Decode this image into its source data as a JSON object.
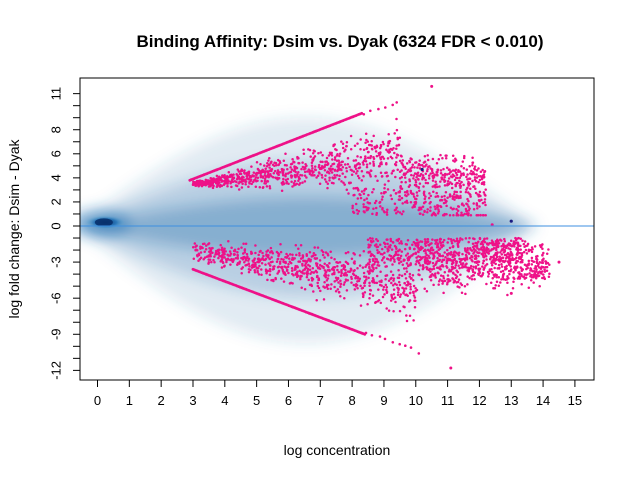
{
  "chart_data": {
    "type": "scatter",
    "title": "Binding Affinity: Dsim vs. Dyak (6324 FDR < 0.010)",
    "xlabel": "log concentration",
    "ylabel": "log fold change: Dsim - Dyak",
    "xlim": [
      -0.55,
      15.6
    ],
    "ylim": [
      -12.8,
      12.3
    ],
    "x_ticks": [
      0,
      1,
      2,
      3,
      4,
      5,
      6,
      7,
      8,
      9,
      10,
      11,
      12,
      13,
      14,
      15
    ],
    "y_ticks": [
      {
        "value": 11,
        "label": "11"
      },
      {
        "value": 10,
        "label": ""
      },
      {
        "value": 9,
        "label": ""
      },
      {
        "value": 8,
        "label": "8"
      },
      {
        "value": 7,
        "label": ""
      },
      {
        "value": 6,
        "label": "6"
      },
      {
        "value": 5,
        "label": ""
      },
      {
        "value": 4,
        "label": "4"
      },
      {
        "value": 3,
        "label": ""
      },
      {
        "value": 2,
        "label": "2"
      },
      {
        "value": 1,
        "label": ""
      },
      {
        "value": 0,
        "label": "0"
      },
      {
        "value": -1,
        "label": ""
      },
      {
        "value": -2,
        "label": ""
      },
      {
        "value": -3,
        "label": "-3"
      },
      {
        "value": -4,
        "label": ""
      },
      {
        "value": -5,
        "label": ""
      },
      {
        "value": -6,
        "label": "-6"
      },
      {
        "value": -7,
        "label": ""
      },
      {
        "value": -8,
        "label": ""
      },
      {
        "value": -9,
        "label": "-9"
      },
      {
        "value": -10,
        "label": ""
      },
      {
        "value": -11,
        "label": ""
      },
      {
        "value": -12,
        "label": "-12"
      }
    ],
    "reference_line": {
      "y": 0,
      "color": "#3d8fe0"
    },
    "density_color": "#2c6fad",
    "significant_color": "#ee1188",
    "outlier_color": "#1a1a80",
    "significant_count": 6324,
    "fdr_threshold": 0.01,
    "envelope_upper": [
      {
        "x": 2.9,
        "y": 3.8
      },
      {
        "x": 9.5,
        "y": 10.6
      }
    ],
    "envelope_lower": [
      {
        "x": 3.0,
        "y": -3.6
      },
      {
        "x": 11.2,
        "y": -11.8
      }
    ],
    "extreme_points": [
      {
        "x": 10.5,
        "y": 11.6
      },
      {
        "x": 11.1,
        "y": -11.8
      },
      {
        "x": 13.0,
        "y": -5.6
      },
      {
        "x": 14.5,
        "y": -3.0
      },
      {
        "x": 12.4,
        "y": 0.1
      }
    ],
    "outlier_points": [
      {
        "x": 10.2,
        "y": 4.7
      },
      {
        "x": 13.0,
        "y": 0.4
      }
    ]
  }
}
